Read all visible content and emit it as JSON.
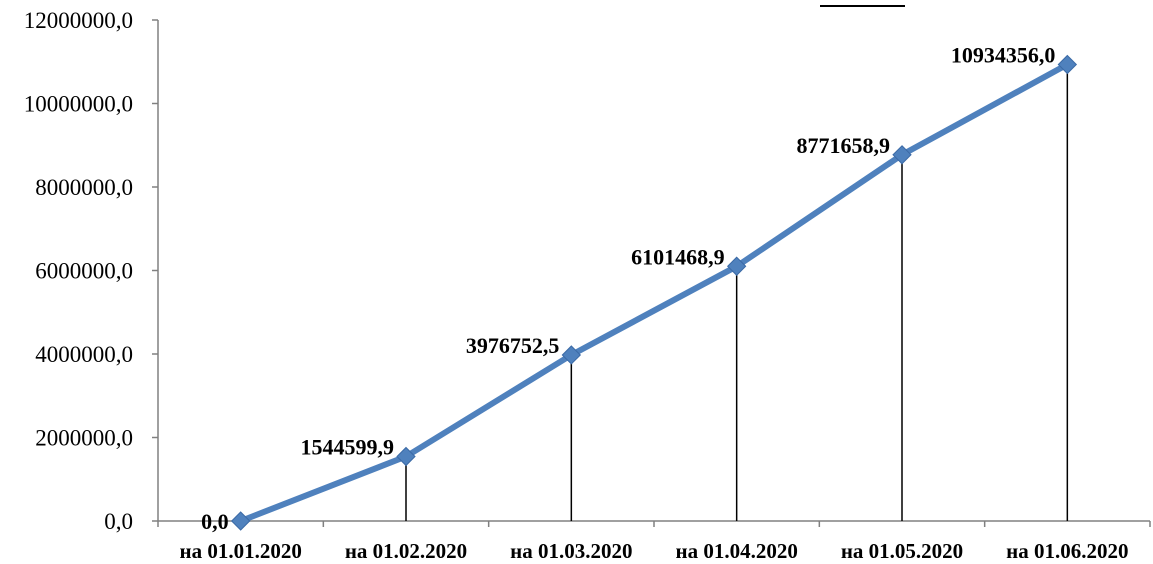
{
  "chart_data": {
    "type": "line",
    "categories": [
      "на 01.01.2020",
      "на 01.02.2020",
      "на 01.03.2020",
      "на 01.04.2020",
      "на 01.05.2020",
      "на 01.06.2020"
    ],
    "values": [
      0.0,
      1544599.9,
      3976752.5,
      6101468.9,
      8771658.9,
      10934356.0
    ],
    "data_labels": [
      "0,0",
      "1544599,9",
      "3976752,5",
      "6101468,9",
      "8771658,9",
      "10934356,0"
    ],
    "y_ticks": [
      "0,0",
      "2000000,0",
      "4000000,0",
      "6000000,0",
      "8000000,0",
      "10000000,0",
      "12000000,0"
    ],
    "ylim": [
      0,
      12000000
    ],
    "drop_lines": true,
    "grid": false,
    "line_color": "#4F81BD",
    "marker": "diamond"
  }
}
